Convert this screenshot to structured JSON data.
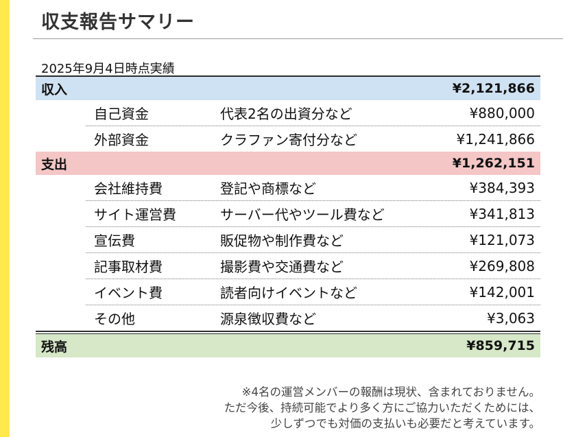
{
  "title": "収支報告サマリー",
  "as_of": "2025年9月4日時点実績",
  "income": {
    "label": "収入",
    "total": "¥2,121,866",
    "items": [
      {
        "name": "自己資金",
        "desc": "代表2名の出資分など",
        "amount": "¥880,000"
      },
      {
        "name": "外部資金",
        "desc": "クラファン寄付分など",
        "amount": "¥1,241,866"
      }
    ]
  },
  "expense": {
    "label": "支出",
    "total": "¥1,262,151",
    "items": [
      {
        "name": "会社維持費",
        "desc": "登記や商標など",
        "amount": "¥384,393"
      },
      {
        "name": "サイト運営費",
        "desc": "サーバー代やツール費など",
        "amount": "¥341,813"
      },
      {
        "name": "宣伝費",
        "desc": "販促物や制作費など",
        "amount": "¥121,073"
      },
      {
        "name": "記事取材費",
        "desc": "撮影費や交通費など",
        "amount": "¥269,808"
      },
      {
        "name": "イベント費",
        "desc": "読者向けイベントなど",
        "amount": "¥142,001"
      },
      {
        "name": "その他",
        "desc": "源泉徴収費など",
        "amount": "¥3,063"
      }
    ]
  },
  "balance": {
    "label": "残高",
    "total": "¥859,715"
  },
  "notes": [
    "※4名の運営メンバーの報酬は現状、含まれておりません。",
    "ただ今後、持続可能でより多く方にご協力いただくためには、",
    "少しずつでも対価の支払いも必要だと考えています。"
  ],
  "colors": {
    "accent_bar": "#ffe94d",
    "income_bg": "#cfe2f3",
    "expense_bg": "#f4c6c6",
    "balance_bg": "#d6e8c8"
  }
}
